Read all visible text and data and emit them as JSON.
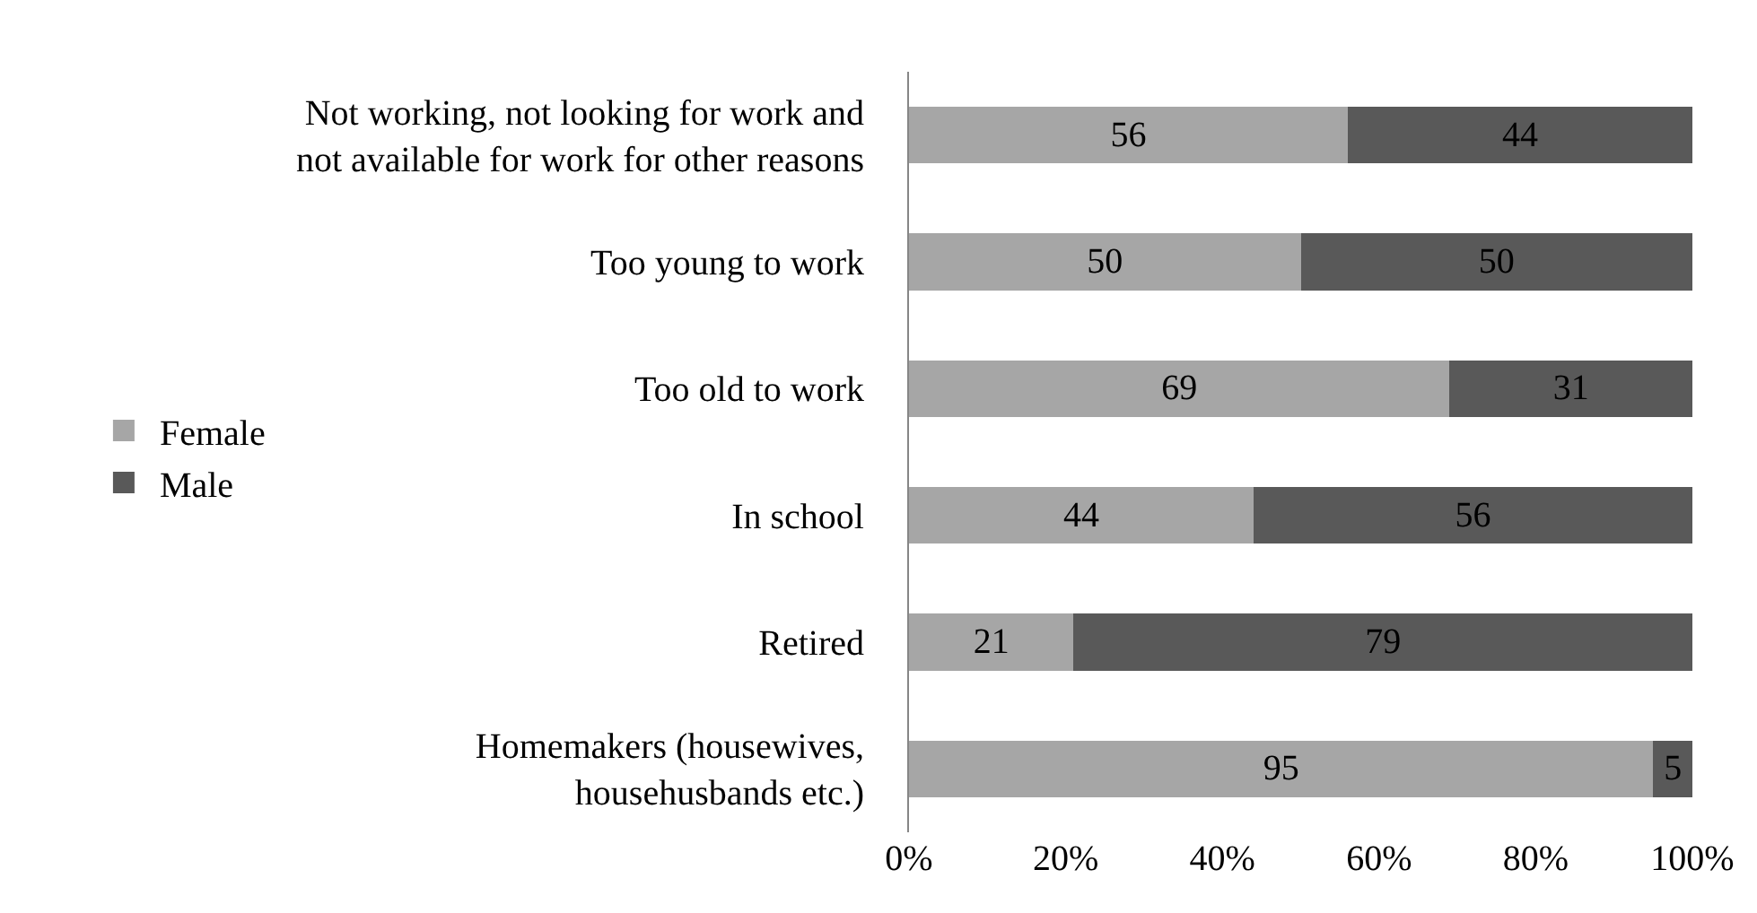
{
  "chart_data": {
    "type": "bar",
    "orientation": "horizontal",
    "stacked": true,
    "data_labels": true,
    "legend": "left",
    "categories": [
      "Not working, not looking for work and\nnot available for work for other reasons",
      "Too young to work",
      "Too old to work",
      "In school",
      "Retired",
      "Homemakers (housewives,\nhousehusbands etc.)"
    ],
    "series": [
      {
        "name": "Female",
        "color": "#a6a6a6",
        "values": [
          56,
          50,
          69,
          44,
          21,
          95
        ]
      },
      {
        "name": "Male",
        "color": "#595959",
        "values": [
          44,
          50,
          31,
          56,
          79,
          5
        ]
      }
    ],
    "xlim": [
      0,
      100
    ],
    "xticks": [
      {
        "value": 0,
        "label": "0%"
      },
      {
        "value": 20,
        "label": "20%"
      },
      {
        "value": 40,
        "label": "40%"
      },
      {
        "value": 60,
        "label": "60%"
      },
      {
        "value": 80,
        "label": "80%"
      },
      {
        "value": 100,
        "label": "100%"
      }
    ]
  }
}
